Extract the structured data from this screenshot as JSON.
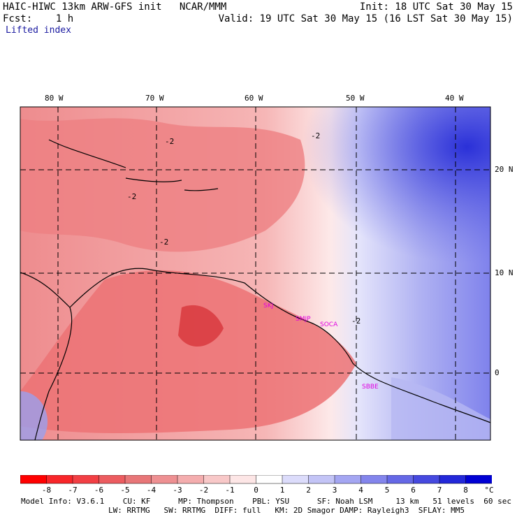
{
  "header": {
    "model_line": "HAIC-HIWC 13km ARW-GFS init   NCAR/MMM",
    "fcst_line": "Fcst:    1 h",
    "field": "Lifted index",
    "init": "Init: 18 UTC Sat 30 May 15",
    "valid": "Valid: 19 UTC Sat 30 May 15 (16 LST Sat 30 May 15)"
  },
  "map": {
    "lon_labels": [
      "80 W",
      "70 W",
      "60 W",
      "50 W",
      "40 W"
    ],
    "lat_labels": [
      "20 N",
      "10 N",
      "0"
    ],
    "contour_labels": [
      "-2",
      "-2",
      "-2",
      "-2",
      "-2"
    ],
    "stations": [
      "SKJ",
      "SMJP",
      "SOCA",
      "SBBE"
    ],
    "colors": {
      "neg": "#e8686a",
      "pos": "#4a55e6",
      "station": "#e000e0",
      "grid": "#000000"
    }
  },
  "colorbar": {
    "labels": [
      "-8",
      "-7",
      "-6",
      "-5",
      "-4",
      "-3",
      "-2",
      "-1",
      "0",
      "1",
      "2",
      "3",
      "4",
      "5",
      "6",
      "7",
      "8"
    ],
    "unit": "°C",
    "colors": [
      "#ff0000",
      "#f8262a",
      "#f23f44",
      "#ec5c60",
      "#e87678",
      "#ee9092",
      "#f4adae",
      "#f8c8c8",
      "#fde6e6",
      "#ffffff",
      "#dcdcfb",
      "#c3c4f6",
      "#a4a6f2",
      "#8385ec",
      "#6568e6",
      "#4649df",
      "#2328d9",
      "#0000d4"
    ]
  },
  "footer": {
    "line1": "Model Info: V3.6.1    CU: KF      MP: Thompson    PBL: YSU      SF: Noah LSM     13 km   51 levels  60 sec",
    "line2": "LW: RRTMG   SW: RRTMG  DIFF: full   KM: 2D Smagor DAMP: Rayleigh3  SFLAY: MM5"
  }
}
